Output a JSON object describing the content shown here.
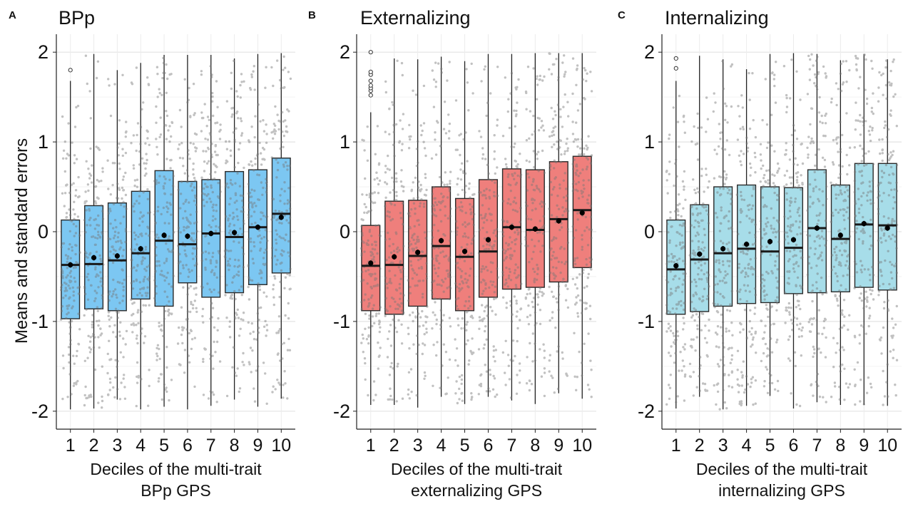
{
  "ylabel": "Means and standard errors",
  "colors": {
    "bpp": "#7cc7f2",
    "externalizing": "#ef7f7c",
    "internalizing": "#a7dde9"
  },
  "chart_data": [
    {
      "type": "box",
      "panel": "A",
      "title": "BPp",
      "xlabel_lines": [
        "Deciles of the multi-trait",
        "BPp GPS"
      ],
      "categories": [
        "1",
        "2",
        "3",
        "4",
        "5",
        "6",
        "7",
        "8",
        "9",
        "10"
      ],
      "ylim": [
        -2.2,
        2.2
      ],
      "yticks": [
        "-2",
        "-1",
        "0",
        "1",
        "2"
      ],
      "grid": true,
      "fill": "#7cc7f2",
      "q1": [
        -0.97,
        -0.86,
        -0.88,
        -0.75,
        -0.83,
        -0.57,
        -0.73,
        -0.68,
        -0.59,
        -0.46
      ],
      "median": [
        -0.37,
        -0.36,
        -0.32,
        -0.24,
        -0.1,
        -0.14,
        -0.02,
        -0.06,
        0.05,
        0.2
      ],
      "q3": [
        0.13,
        0.29,
        0.32,
        0.45,
        0.68,
        0.56,
        0.58,
        0.67,
        0.69,
        0.82
      ],
      "wlow": [
        -1.98,
        -1.97,
        -1.87,
        -1.98,
        -1.95,
        -1.98,
        -1.94,
        -1.87,
        -1.95,
        -1.86
      ],
      "whigh": [
        1.68,
        1.98,
        1.8,
        1.88,
        1.97,
        1.97,
        1.97,
        1.93,
        1.98,
        1.99
      ],
      "mean": [
        -0.37,
        -0.29,
        -0.27,
        -0.19,
        -0.04,
        -0.05,
        -0.02,
        -0.01,
        0.05,
        0.16
      ],
      "se": [
        0.03,
        0.03,
        0.03,
        0.03,
        0.03,
        0.03,
        0.03,
        0.03,
        0.03,
        0.03
      ],
      "outliers": [
        [
          1.8
        ],
        [],
        [],
        [],
        [],
        [],
        [],
        [],
        [],
        []
      ]
    },
    {
      "type": "box",
      "panel": "B",
      "title": "Externalizing",
      "xlabel_lines": [
        "Deciles of the multi-trait",
        "externalizing GPS"
      ],
      "categories": [
        "1",
        "2",
        "3",
        "4",
        "5",
        "6",
        "7",
        "8",
        "9",
        "10"
      ],
      "ylim": [
        -2.2,
        2.2
      ],
      "yticks": [
        "-2",
        "-1",
        "0",
        "1",
        "2"
      ],
      "grid": true,
      "fill": "#ef7f7c",
      "q1": [
        -0.88,
        -0.92,
        -0.83,
        -0.75,
        -0.88,
        -0.73,
        -0.64,
        -0.62,
        -0.56,
        -0.4
      ],
      "median": [
        -0.38,
        -0.37,
        -0.27,
        -0.16,
        -0.28,
        -0.22,
        0.05,
        0.02,
        0.14,
        0.24
      ],
      "q3": [
        0.07,
        0.34,
        0.35,
        0.5,
        0.37,
        0.58,
        0.7,
        0.69,
        0.78,
        0.84
      ],
      "wlow": [
        -1.93,
        -1.93,
        -1.96,
        -1.84,
        -1.92,
        -1.84,
        -1.88,
        -1.92,
        -1.8,
        -1.86
      ],
      "whigh": [
        1.33,
        1.93,
        1.92,
        1.95,
        1.9,
        1.98,
        1.98,
        1.99,
        1.99,
        1.99
      ],
      "mean": [
        -0.35,
        -0.28,
        -0.23,
        -0.1,
        -0.22,
        -0.09,
        0.05,
        0.03,
        0.12,
        0.21
      ],
      "se": [
        0.03,
        0.03,
        0.03,
        0.03,
        0.03,
        0.03,
        0.03,
        0.03,
        0.03,
        0.03
      ],
      "outliers": [
        [
          1.52,
          1.57,
          1.6,
          1.63,
          1.68,
          1.75,
          1.78,
          2.0
        ],
        [],
        [],
        [],
        [],
        [],
        [],
        [],
        [],
        []
      ]
    },
    {
      "type": "box",
      "panel": "C",
      "title": "Internalizing",
      "xlabel_lines": [
        "Deciles of the multi-trait",
        "internalizing GPS"
      ],
      "categories": [
        "1",
        "2",
        "3",
        "4",
        "5",
        "6",
        "7",
        "8",
        "9",
        "10"
      ],
      "ylim": [
        -2.2,
        2.2
      ],
      "yticks": [
        "-2",
        "-1",
        "0",
        "1",
        "2"
      ],
      "grid": true,
      "fill": "#a7dde9",
      "q1": [
        -0.92,
        -0.89,
        -0.83,
        -0.8,
        -0.79,
        -0.69,
        -0.68,
        -0.67,
        -0.62,
        -0.65
      ],
      "median": [
        -0.42,
        -0.31,
        -0.24,
        -0.19,
        -0.22,
        -0.18,
        0.04,
        -0.08,
        0.08,
        0.07
      ],
      "q3": [
        0.13,
        0.3,
        0.5,
        0.52,
        0.5,
        0.49,
        0.69,
        0.52,
        0.76,
        0.76
      ],
      "wlow": [
        -1.97,
        -1.84,
        -1.98,
        -1.94,
        -1.83,
        -1.97,
        -1.9,
        -1.93,
        -1.93,
        -1.94
      ],
      "whigh": [
        1.68,
        1.96,
        1.92,
        1.81,
        1.98,
        1.99,
        1.98,
        1.91,
        1.98,
        1.92
      ],
      "mean": [
        -0.38,
        -0.25,
        -0.19,
        -0.14,
        -0.11,
        -0.09,
        0.04,
        -0.04,
        0.09,
        0.04
      ],
      "se": [
        0.03,
        0.03,
        0.03,
        0.03,
        0.03,
        0.03,
        0.03,
        0.03,
        0.03,
        0.03
      ],
      "outliers": [
        [
          1.82,
          1.93
        ],
        [],
        [],
        [],
        [],
        [],
        [],
        [],
        [],
        []
      ]
    }
  ]
}
